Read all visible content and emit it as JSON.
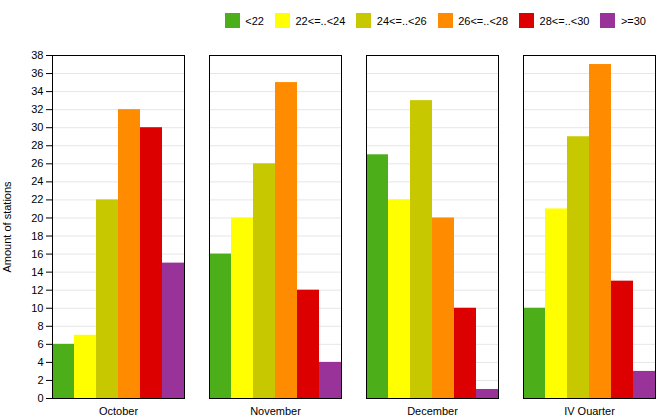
{
  "chart_data": {
    "type": "bar",
    "categories": [
      "October",
      "November",
      "December",
      "IV Quarter"
    ],
    "series": [
      {
        "name": "<22",
        "color": "#4caf1a",
        "values": [
          6,
          16,
          27,
          10
        ]
      },
      {
        "name": "22<=..<24",
        "color": "#ffff00",
        "values": [
          7,
          20,
          22,
          21
        ]
      },
      {
        "name": "24<=..<26",
        "color": "#c8c800",
        "values": [
          22,
          26,
          33,
          29
        ]
      },
      {
        "name": "26<=..<28",
        "color": "#ff8c00",
        "values": [
          32,
          35,
          20,
          37
        ]
      },
      {
        "name": "28<=..<30",
        "color": "#dd0000",
        "values": [
          30,
          12,
          10,
          13
        ]
      },
      {
        "name": ">=30",
        "color": "#993399",
        "values": [
          15,
          4,
          1,
          3
        ]
      }
    ],
    "ylabel": "Amount of stations",
    "ylim": [
      0,
      38
    ],
    "yticks": [
      0,
      2,
      4,
      6,
      8,
      10,
      12,
      14,
      16,
      18,
      20,
      22,
      24,
      26,
      28,
      30,
      32,
      34,
      36,
      38
    ],
    "grid": true,
    "legend": "top-right"
  }
}
